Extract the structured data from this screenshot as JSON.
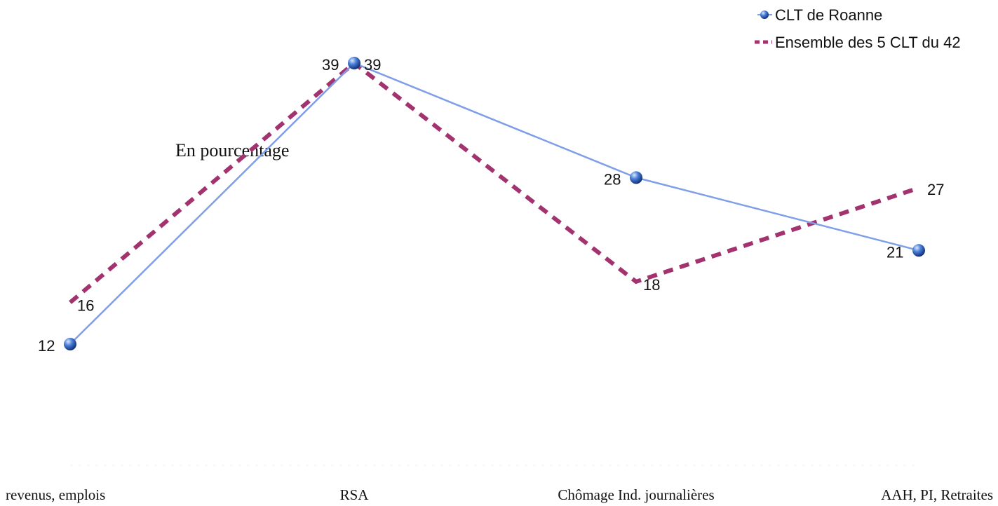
{
  "chart_data": {
    "type": "line",
    "categories": [
      "revenus, emplois",
      "RSA",
      "Chômage Ind. journalières",
      "AAH, PI, Retraites"
    ],
    "series": [
      {
        "name": "CLT de Roanne",
        "values": [
          12,
          39,
          28,
          21
        ],
        "color": "#7f9ee8",
        "marker": "sphere",
        "style": "solid"
      },
      {
        "name": "Ensemble des 5 CLT du 42",
        "values": [
          16,
          39,
          18,
          27
        ],
        "color": "#a2336f",
        "marker": "none",
        "style": "dashed"
      }
    ],
    "annotation": "En pourcentage",
    "legend": "top-right",
    "grid": false
  }
}
